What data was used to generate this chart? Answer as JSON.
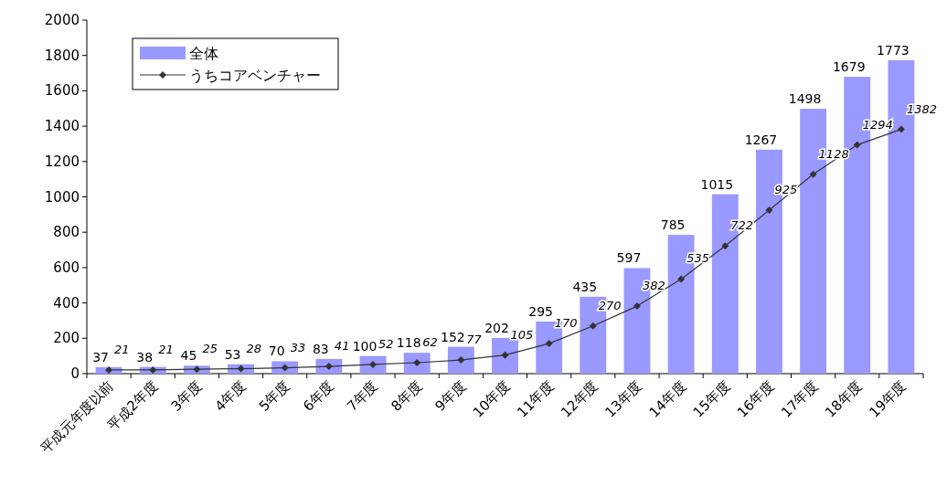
{
  "chart_data": {
    "type": "bar",
    "categories": [
      "平成元年度以前",
      "平成2年度",
      "3年度",
      "4年度",
      "5年度",
      "6年度",
      "7年度",
      "8年度",
      "9年度",
      "10年度",
      "11年度",
      "12年度",
      "13年度",
      "14年度",
      "15年度",
      "16年度",
      "17年度",
      "18年度",
      "19年度"
    ],
    "series": [
      {
        "name": "全体",
        "color": "#9999ff",
        "values": [
          37,
          38,
          45,
          53,
          70,
          83,
          100,
          118,
          152,
          202,
          295,
          435,
          597,
          785,
          1015,
          1267,
          1498,
          1679,
          1773
        ]
      },
      {
        "name": "うちコアベンチャー",
        "type": "line",
        "color": "#333333",
        "marker": "diamond",
        "values": [
          21,
          21,
          25,
          28,
          33,
          41,
          52,
          62,
          77,
          105,
          170,
          270,
          382,
          535,
          722,
          925,
          1128,
          1294,
          1382
        ]
      }
    ],
    "ylim": [
      0,
      2000
    ],
    "yticks": [
      0,
      200,
      400,
      600,
      800,
      1000,
      1200,
      1400,
      1600,
      1800,
      2000
    ],
    "data_labels": true,
    "legend": "top left",
    "grid": false
  }
}
